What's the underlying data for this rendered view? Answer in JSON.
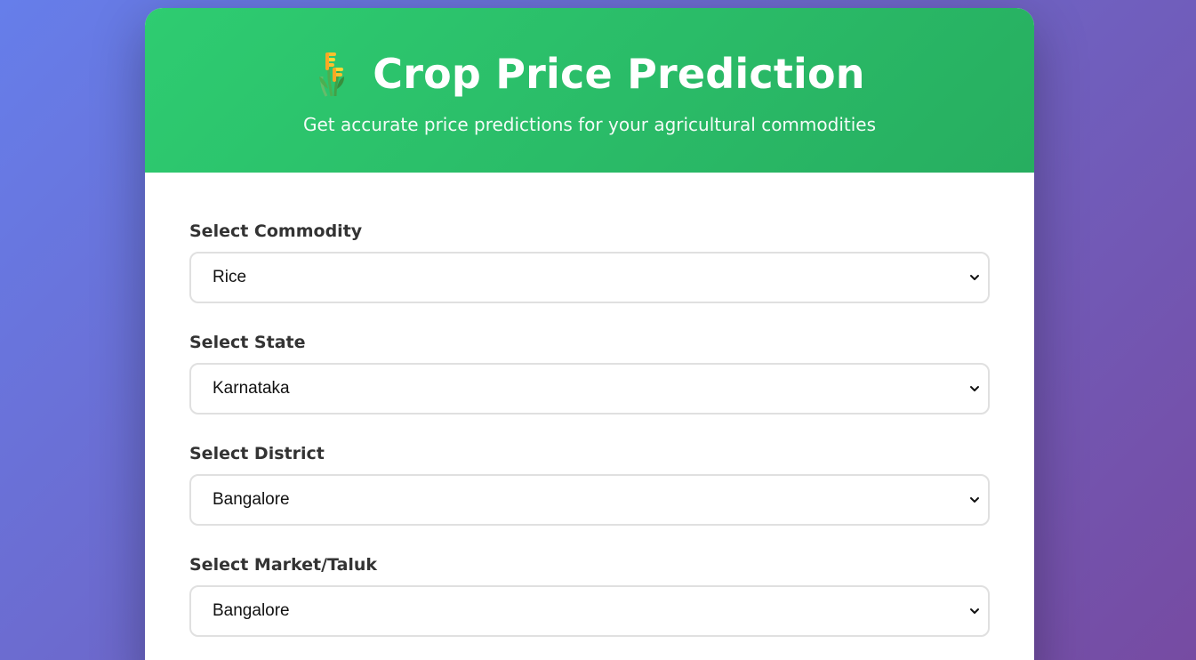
{
  "header": {
    "icon": "sheaf-of-rice-icon",
    "title": "Crop Price Prediction",
    "subtitle": "Get accurate price predictions for your agricultural commodities"
  },
  "form": {
    "commodity": {
      "label": "Select Commodity",
      "value": "Rice"
    },
    "state": {
      "label": "Select State",
      "value": "Karnataka"
    },
    "district": {
      "label": "Select District",
      "value": "Bangalore"
    },
    "market": {
      "label": "Select Market/Taluk",
      "value": "Bangalore"
    }
  },
  "colors": {
    "background_start": "#667eea",
    "background_end": "#764ba2",
    "header_start": "#2ecc71",
    "header_end": "#27ae60",
    "label": "#333333",
    "select_border": "#e0e0e0"
  }
}
